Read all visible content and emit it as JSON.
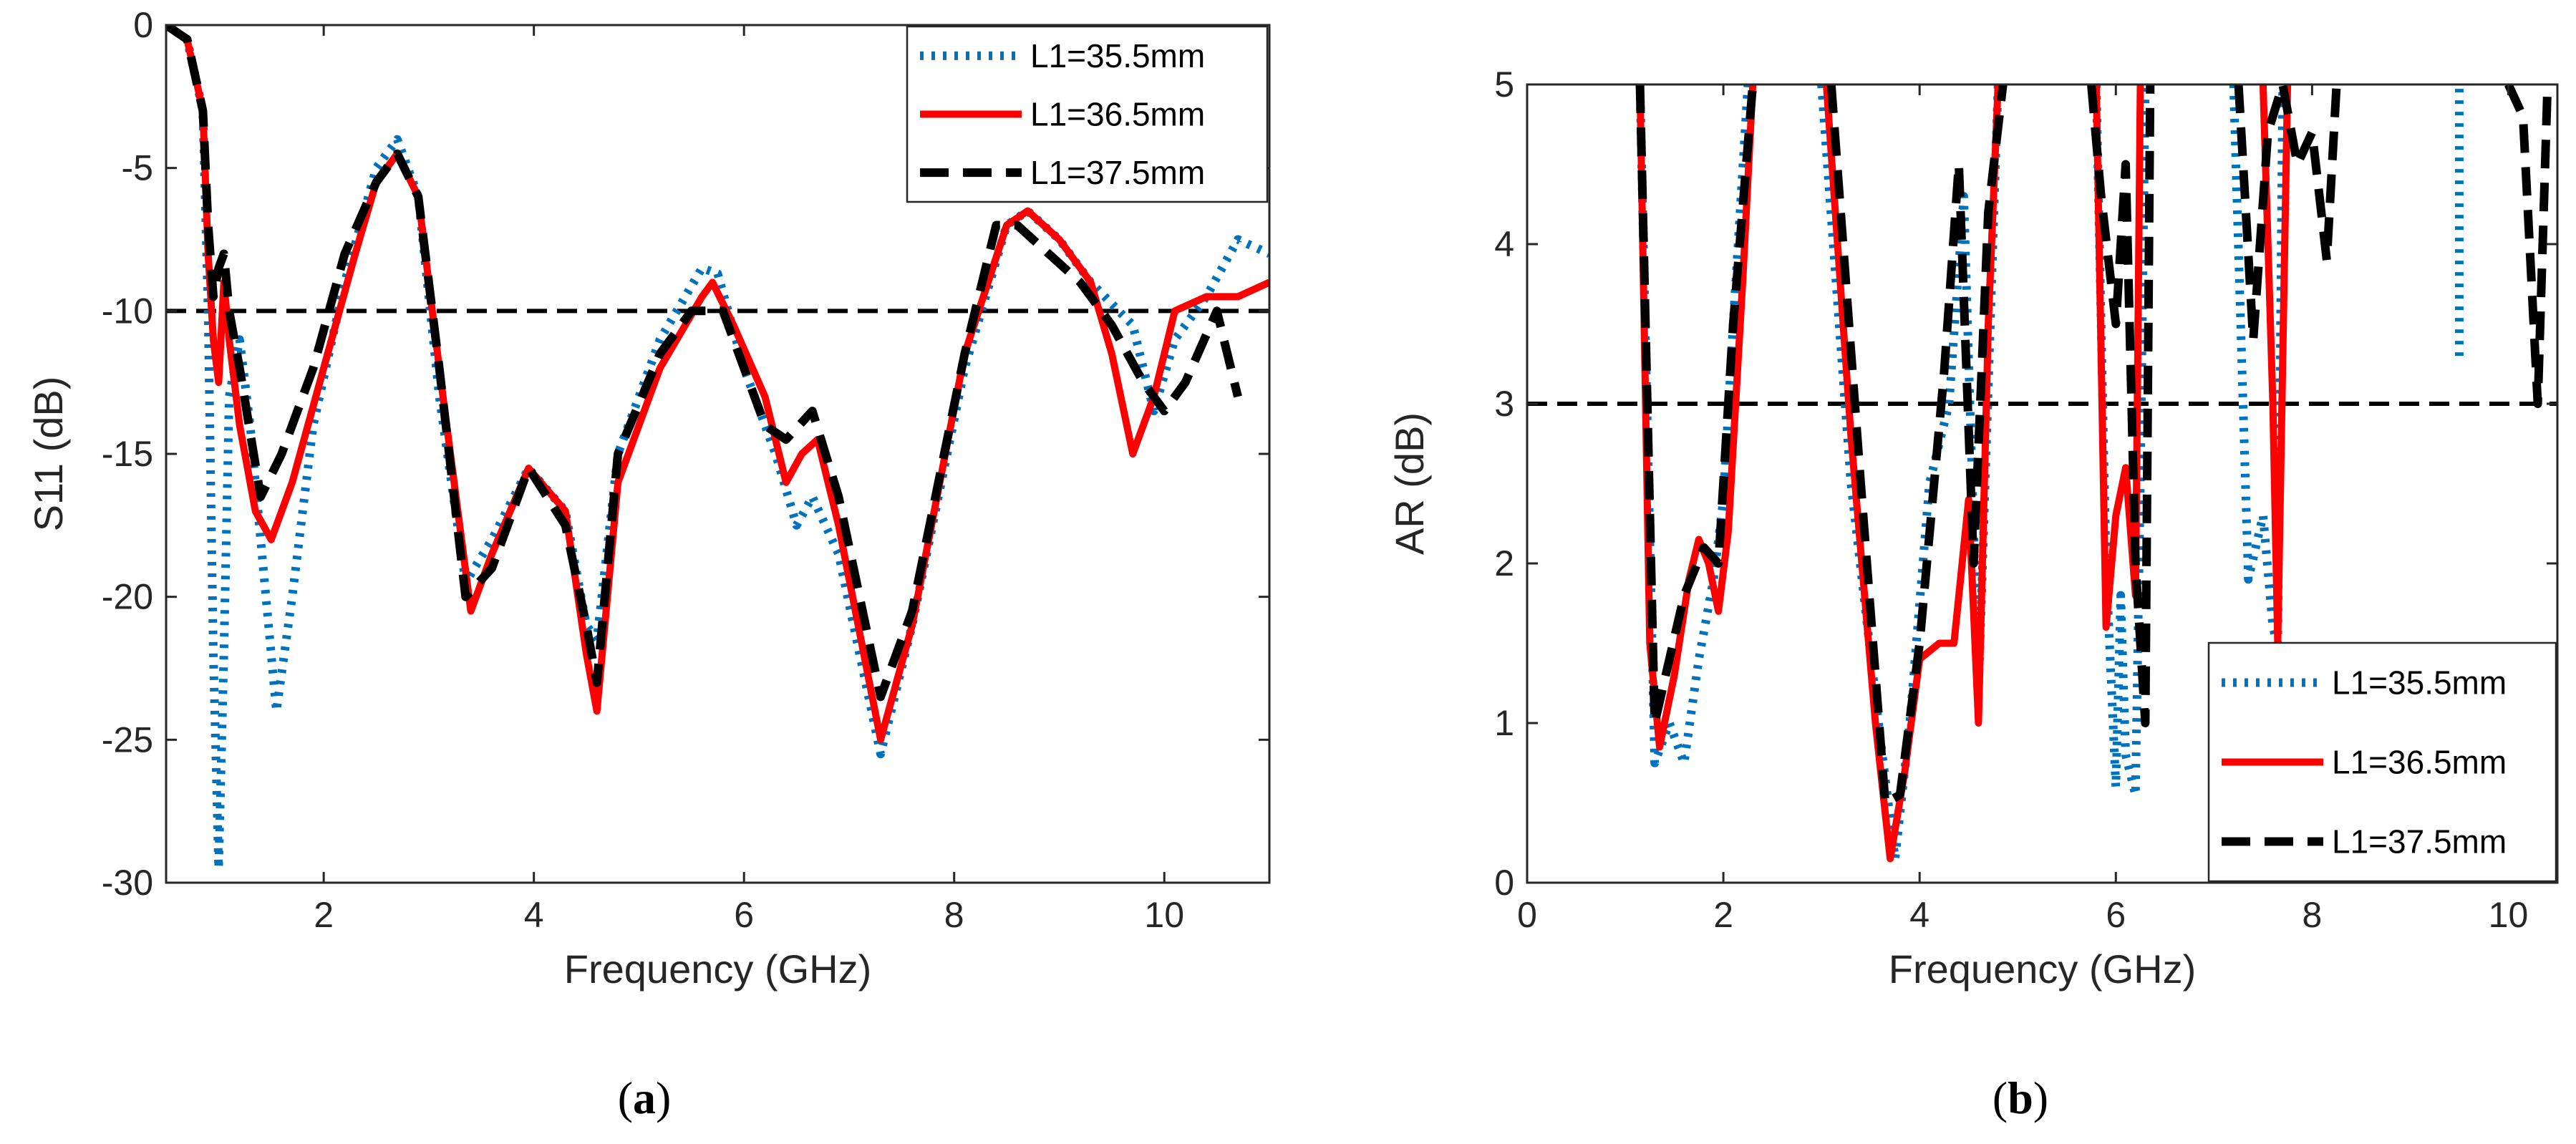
{
  "chart_data": [
    {
      "type": "line",
      "panel_label": "a",
      "xlabel": "Frequency (GHz)",
      "ylabel": "S11 (dB)",
      "xlim": [
        0.5,
        11
      ],
      "ylim": [
        -30,
        0
      ],
      "xticks": [
        2,
        4,
        6,
        8,
        10
      ],
      "yticks": [
        0,
        -5,
        -10,
        -15,
        -20,
        -25,
        -30
      ],
      "grid": false,
      "legend_position": "top-right",
      "reference_line": {
        "y": -10,
        "style": "dashed",
        "color": "#000000"
      },
      "series": [
        {
          "name": "L1=35.5mm",
          "color": "#0072BD",
          "style": "dotted",
          "x": [
            0.5,
            0.7,
            0.85,
            0.9,
            0.95,
            1.0,
            1.05,
            1.1,
            1.2,
            1.3,
            1.4,
            1.55,
            1.7,
            1.9,
            2.2,
            2.5,
            2.7,
            2.9,
            3.1,
            3.35,
            3.6,
            3.95,
            4.3,
            4.5,
            4.6,
            4.8,
            5.2,
            5.6,
            5.75,
            6.0,
            6.3,
            6.5,
            6.65,
            6.9,
            7.3,
            7.6,
            8.1,
            8.5,
            8.7,
            9.0,
            9.3,
            9.7,
            9.9,
            10.1,
            10.4,
            10.7,
            11.0
          ],
          "y": [
            0,
            -0.5,
            -3,
            -10,
            -22,
            -29.5,
            -22,
            -13,
            -11,
            -14,
            -18,
            -24,
            -20,
            -14,
            -9,
            -5,
            -4,
            -6,
            -13,
            -19.5,
            -18,
            -15.5,
            -17,
            -21,
            -21.5,
            -15,
            -11,
            -8.5,
            -8.7,
            -12,
            -15,
            -17.5,
            -16.5,
            -18.5,
            -25.5,
            -21,
            -12,
            -7,
            -6.5,
            -7.5,
            -9,
            -10.5,
            -13.5,
            -11,
            -9.5,
            -7.5,
            -8
          ]
        },
        {
          "name": "L1=36.5mm",
          "color": "#FF0000",
          "style": "solid",
          "x": [
            0.5,
            0.7,
            0.85,
            0.9,
            0.95,
            1.0,
            1.05,
            1.1,
            1.2,
            1.35,
            1.5,
            1.7,
            2.0,
            2.3,
            2.5,
            2.7,
            2.9,
            3.1,
            3.4,
            3.6,
            3.95,
            4.3,
            4.5,
            4.6,
            4.8,
            5.2,
            5.6,
            5.7,
            5.9,
            6.2,
            6.4,
            6.55,
            6.7,
            6.9,
            7.3,
            7.6,
            8.1,
            8.5,
            8.7,
            9.0,
            9.3,
            9.5,
            9.7,
            9.9,
            10.1,
            10.4,
            10.7,
            11.0
          ],
          "y": [
            0,
            -0.5,
            -3,
            -8,
            -11,
            -12.5,
            -9,
            -11,
            -14,
            -17,
            -18,
            -16,
            -12,
            -8,
            -5.5,
            -4.5,
            -6,
            -12,
            -20.5,
            -18.5,
            -15.5,
            -17,
            -22,
            -24,
            -16,
            -12,
            -9.5,
            -9,
            -10.5,
            -13,
            -16,
            -15,
            -14.5,
            -17.5,
            -25,
            -21,
            -11.5,
            -7,
            -6.5,
            -7.5,
            -9,
            -11.5,
            -15,
            -13,
            -10,
            -9.5,
            -9.5,
            -9
          ]
        },
        {
          "name": "L1=37.5mm",
          "color": "#000000",
          "style": "dashed",
          "x": [
            0.5,
            0.7,
            0.85,
            0.9,
            0.95,
            1.0,
            1.05,
            1.1,
            1.2,
            1.4,
            1.6,
            1.9,
            2.2,
            2.5,
            2.7,
            2.9,
            3.1,
            3.35,
            3.6,
            3.95,
            4.3,
            4.5,
            4.6,
            4.8,
            5.2,
            5.5,
            5.8,
            6.0,
            6.2,
            6.4,
            6.65,
            6.9,
            7.3,
            7.6,
            8.1,
            8.4,
            8.6,
            8.9,
            9.2,
            9.5,
            9.8,
            10.0,
            10.2,
            10.5,
            10.7
          ],
          "y": [
            0,
            -0.5,
            -3,
            -7,
            -9.5,
            -8.5,
            -8,
            -10,
            -12,
            -16.5,
            -15,
            -12,
            -8,
            -5.5,
            -4.5,
            -6,
            -12,
            -20,
            -19,
            -15.5,
            -17.5,
            -21,
            -23,
            -15,
            -11.5,
            -10,
            -10,
            -12,
            -14,
            -14.5,
            -13.5,
            -16.5,
            -23.5,
            -20.5,
            -11.5,
            -7,
            -7,
            -8,
            -9,
            -10.5,
            -12.5,
            -13.5,
            -12.5,
            -10,
            -13
          ]
        }
      ]
    },
    {
      "type": "line",
      "panel_label": "b",
      "xlabel": "Frequency (GHz)",
      "ylabel": "AR (dB)",
      "xlim": [
        0,
        10.5
      ],
      "ylim": [
        0,
        5
      ],
      "xticks": [
        0,
        2,
        4,
        6,
        8,
        10
      ],
      "yticks": [
        0,
        1,
        2,
        3,
        4,
        5
      ],
      "grid": false,
      "legend_position": "bottom-right",
      "reference_line": {
        "y": 3,
        "style": "dashed",
        "color": "#000000"
      },
      "series": [
        {
          "name": "L1=35.5mm",
          "color": "#0072BD",
          "style": "dotted",
          "segments": [
            {
              "x": [
                1.15,
                1.3,
                1.45,
                1.6,
                1.75,
                1.9,
                2.0,
                2.1,
                2.25
              ],
              "y": [
                5,
                0.75,
                1.0,
                0.75,
                1.4,
                1.9,
                2.4,
                3.5,
                5
              ]
            },
            {
              "x": [
                3.0,
                3.3,
                3.6,
                3.75,
                3.9,
                4.1,
                4.3,
                4.45,
                4.6,
                4.8
              ],
              "y": [
                5,
                2.5,
                0.9,
                0.15,
                1.0,
                2.5,
                3.0,
                4.3,
                1.2,
                5
              ]
            },
            {
              "x": [
                5.8,
                5.9,
                6.0,
                6.05,
                6.1,
                6.2,
                6.25,
                6.3
              ],
              "y": [
                5,
                2.0,
                0.6,
                1.8,
                0.8,
                0.55,
                2.5,
                5
              ]
            },
            {
              "x": [
                7.2,
                7.35,
                7.5,
                7.6,
                7.65,
                7.7
              ],
              "y": [
                5,
                1.9,
                2.3,
                1.6,
                1.5,
                5
              ]
            },
            {
              "x": [
                9.5,
                9.5
              ],
              "y": [
                3.3,
                5
              ]
            }
          ]
        },
        {
          "name": "L1=36.5mm",
          "color": "#FF0000",
          "style": "solid",
          "segments": [
            {
              "x": [
                1.15,
                1.25,
                1.35,
                1.5,
                1.65,
                1.75,
                1.85,
                1.95,
                2.05,
                2.2,
                2.3
              ],
              "y": [
                5,
                1.5,
                0.85,
                1.3,
                1.9,
                2.15,
                2.0,
                1.7,
                2.2,
                3.8,
                5
              ]
            },
            {
              "x": [
                3.05,
                3.3,
                3.55,
                3.7,
                3.85,
                4.0,
                4.2,
                4.35,
                4.5,
                4.6,
                4.7,
                4.8
              ],
              "y": [
                5,
                2.8,
                1.0,
                0.15,
                0.7,
                1.4,
                1.5,
                1.5,
                2.4,
                1.0,
                3.5,
                5
              ]
            },
            {
              "x": [
                5.8,
                5.9,
                6.0,
                6.1,
                6.2,
                6.25
              ],
              "y": [
                5,
                1.6,
                2.3,
                2.6,
                1.8,
                5
              ]
            },
            {
              "x": [
                7.5,
                7.6,
                7.65,
                7.75
              ],
              "y": [
                5,
                3.0,
                1.5,
                5
              ]
            }
          ]
        },
        {
          "name": "L1=37.5mm",
          "color": "#000000",
          "style": "dashed",
          "segments": [
            {
              "x": [
                1.15,
                1.3,
                1.45,
                1.6,
                1.8,
                1.95,
                2.1,
                2.3
              ],
              "y": [
                5,
                1.0,
                1.4,
                1.8,
                2.1,
                2.0,
                3.5,
                5
              ]
            },
            {
              "x": [
                3.1,
                3.4,
                3.65,
                3.8,
                4.0,
                4.25,
                4.4,
                4.55,
                4.7,
                4.85
              ],
              "y": [
                5,
                2.5,
                0.5,
                0.55,
                1.5,
                3.2,
                4.5,
                2.0,
                4.2,
                5
              ]
            },
            {
              "x": [
                5.75,
                5.85,
                6.0,
                6.1,
                6.2,
                6.3,
                6.35
              ],
              "y": [
                5,
                4.3,
                3.5,
                4.5,
                2.0,
                1.0,
                5
              ]
            },
            {
              "x": [
                7.25,
                7.4,
                7.55,
                7.7,
                7.85,
                8.0,
                8.15,
                8.25
              ],
              "y": [
                5,
                3.4,
                4.7,
                5,
                4.5,
                4.7,
                3.9,
                5
              ]
            },
            {
              "x": [
                10.0,
                10.15,
                10.3,
                10.4
              ],
              "y": [
                5,
                4.8,
                3.0,
                5
              ]
            }
          ]
        }
      ]
    }
  ]
}
